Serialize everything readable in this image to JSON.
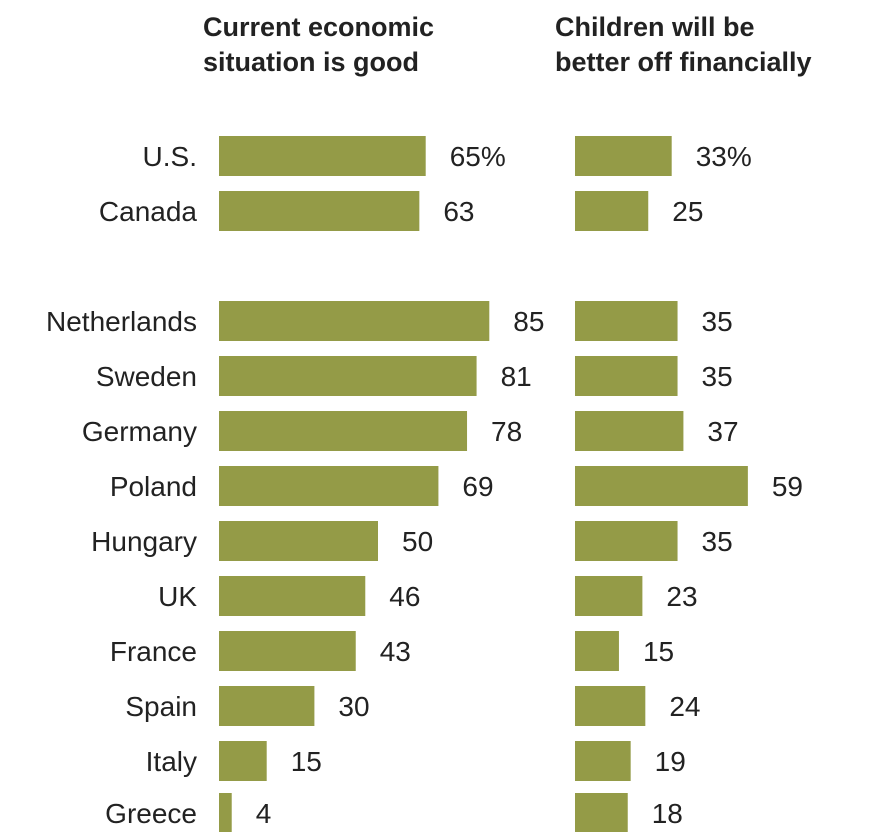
{
  "chart_data": [
    {
      "type": "bar",
      "orientation": "horizontal",
      "title": "Current economic situation is good",
      "categories": [
        "U.S.",
        "Canada",
        "Netherlands",
        "Sweden",
        "Germany",
        "Poland",
        "Hungary",
        "UK",
        "France",
        "Spain",
        "Italy",
        "Greece"
      ],
      "values": [
        65,
        63,
        85,
        81,
        78,
        69,
        50,
        46,
        43,
        30,
        15,
        4
      ],
      "value_labels": [
        "65%",
        "63",
        "85",
        "81",
        "78",
        "69",
        "50",
        "46",
        "43",
        "30",
        "15",
        "4"
      ],
      "xlim": [
        0,
        100
      ]
    },
    {
      "type": "bar",
      "orientation": "horizontal",
      "title": "Children will be better off financially",
      "categories": [
        "U.S.",
        "Canada",
        "Netherlands",
        "Sweden",
        "Germany",
        "Poland",
        "Hungary",
        "UK",
        "France",
        "Spain",
        "Italy",
        "Greece"
      ],
      "values": [
        33,
        25,
        35,
        35,
        37,
        59,
        35,
        23,
        15,
        24,
        19,
        18
      ],
      "value_labels": [
        "33%",
        "25",
        "35",
        "35",
        "37",
        "59",
        "35",
        "23",
        "15",
        "24",
        "19",
        "18"
      ],
      "xlim": [
        0,
        100
      ]
    }
  ],
  "colors": {
    "bar": "#949b47",
    "text": "#222222"
  }
}
